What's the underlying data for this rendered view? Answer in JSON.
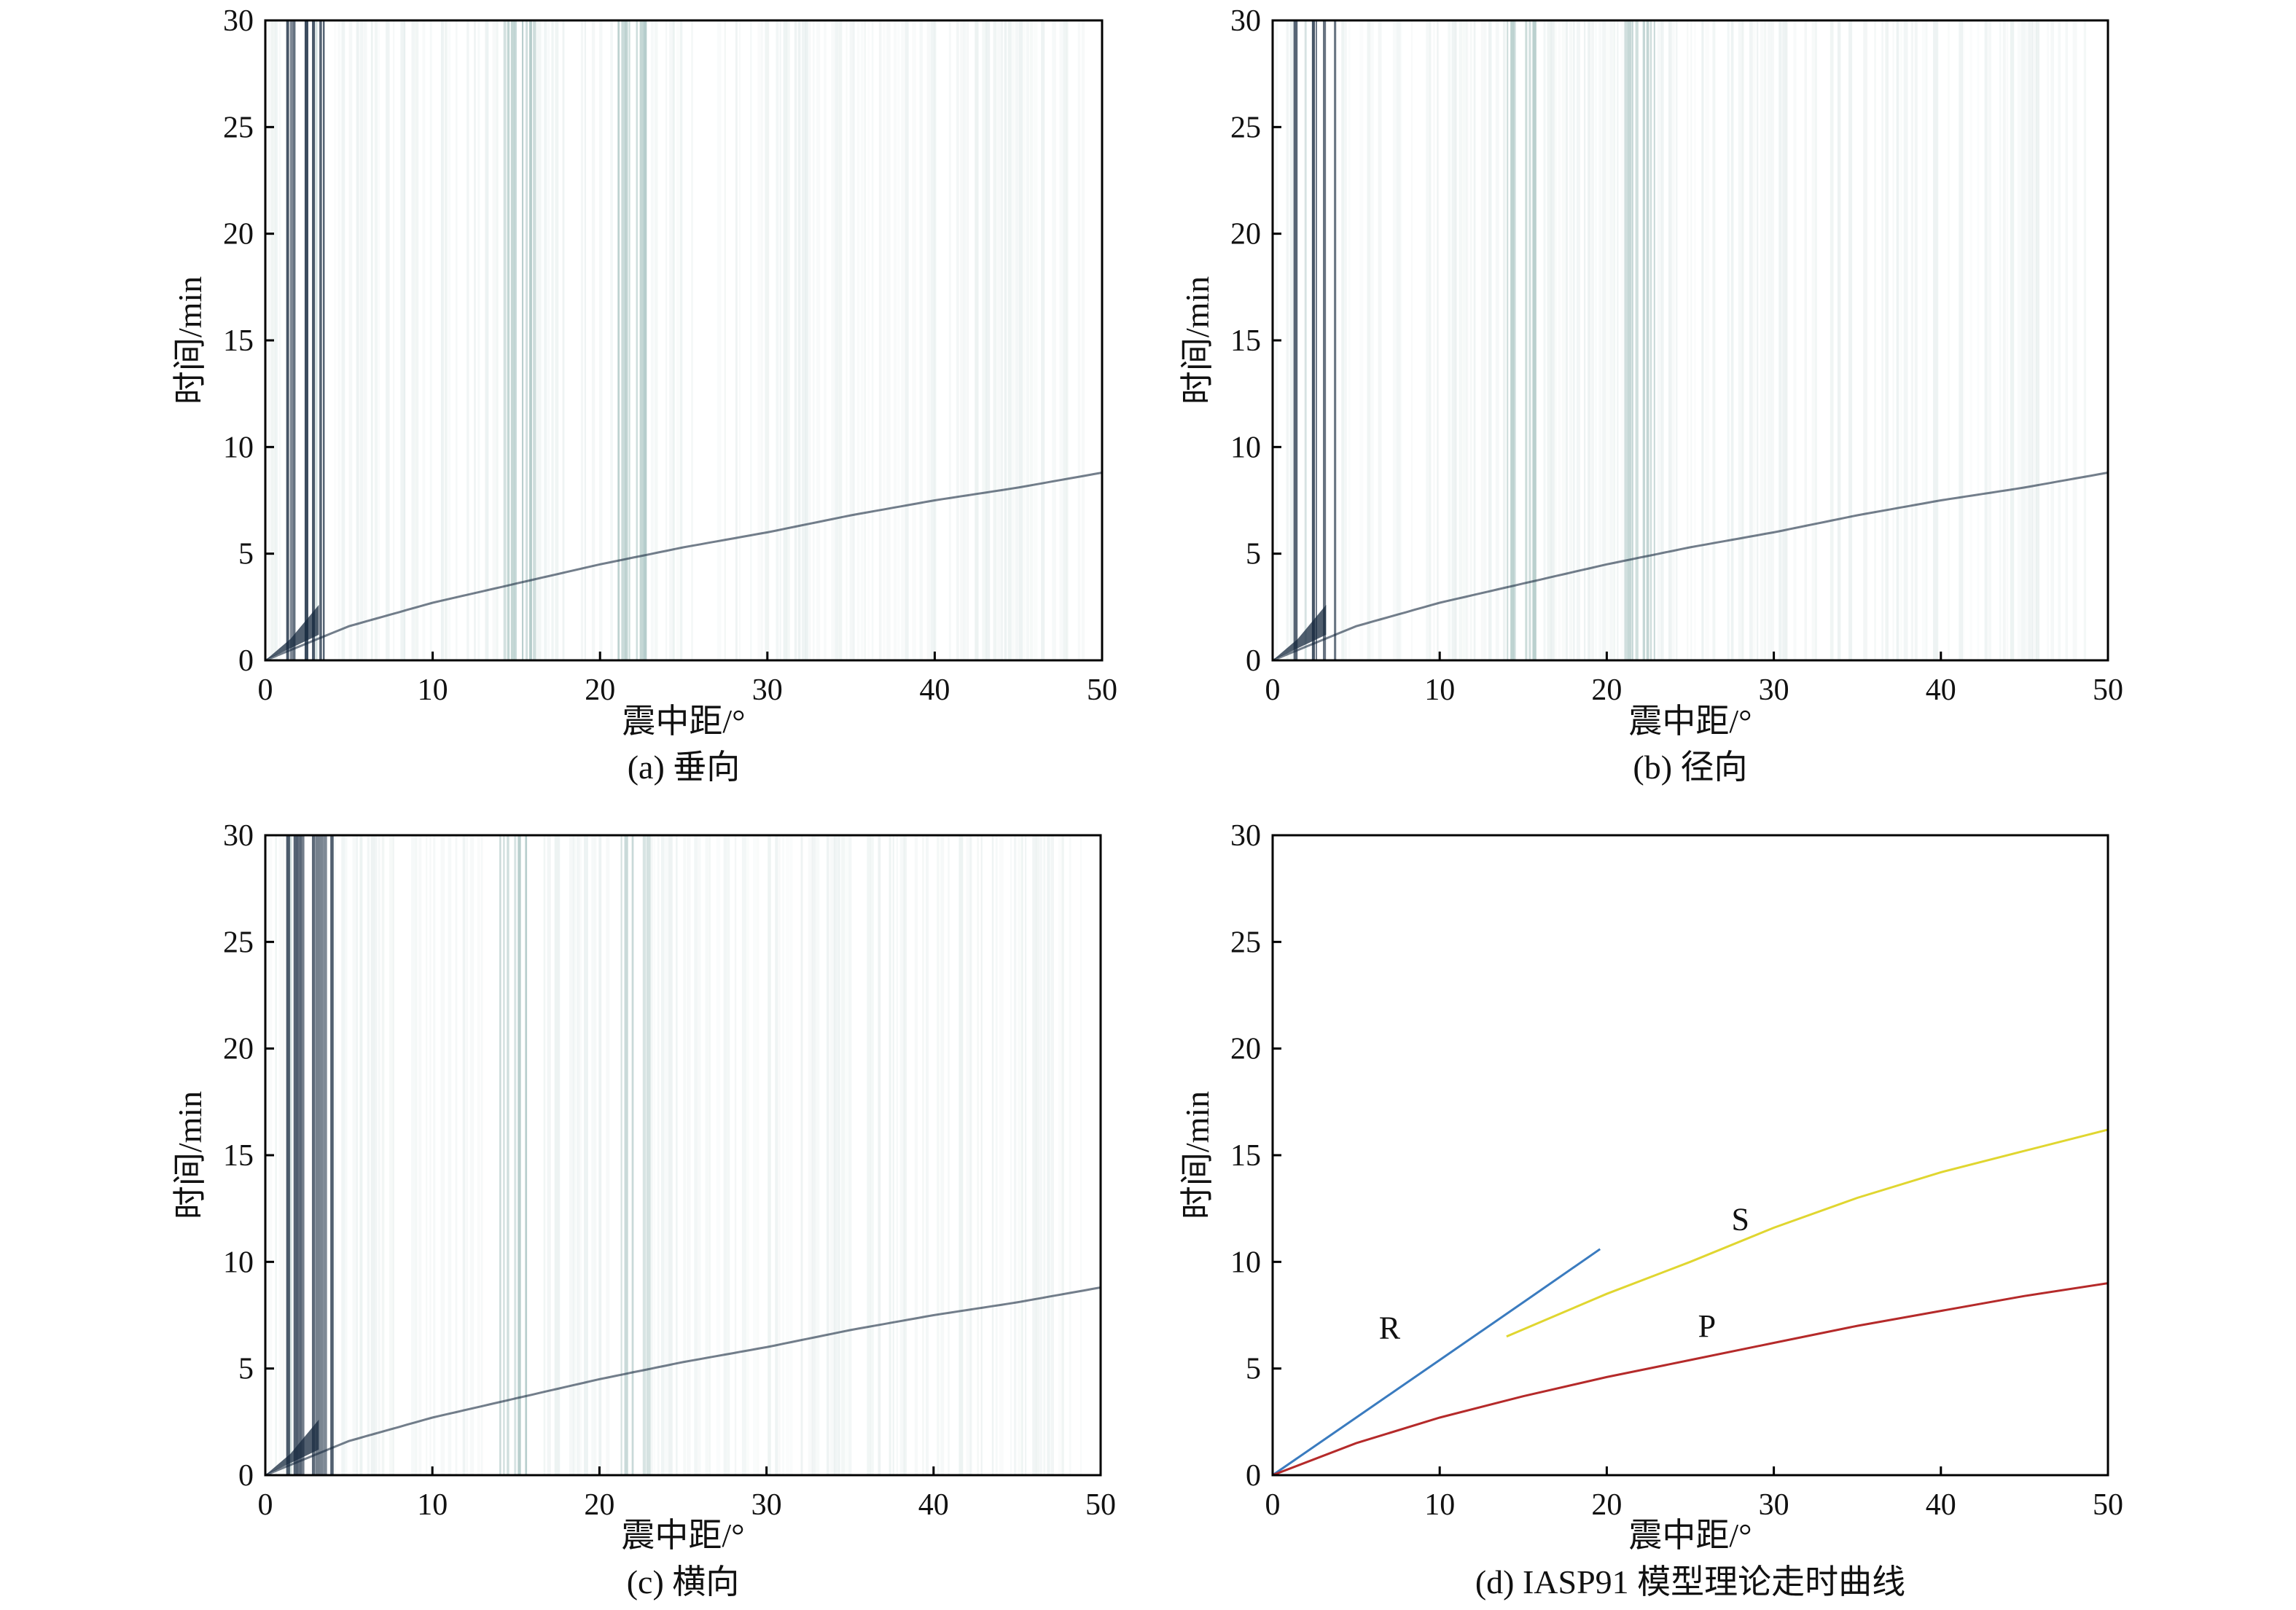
{
  "figure": {
    "colors": {
      "noise": "#a9c4c2",
      "trace_dark": "#15283e",
      "curve_R": "#3a7bbf",
      "curve_S": "#e0d630",
      "curve_P": "#b52a2a",
      "axis": "#000000"
    }
  },
  "chart_data": [
    {
      "type": "heatmap",
      "panel": "a",
      "caption": "(a) 垂向",
      "xlabel": "震中距/°",
      "ylabel": "时间/min",
      "xlim": [
        0,
        50
      ],
      "ylim": [
        0,
        30
      ],
      "xticks": [
        0,
        10,
        20,
        30,
        40,
        50
      ],
      "yticks": [
        0,
        5,
        10,
        15,
        20,
        25,
        30
      ],
      "grid": false,
      "station_band_centers_deg": [
        2.5,
        15,
        22
      ],
      "arrival_front": {
        "x": [
          0,
          5,
          10,
          15,
          20,
          25,
          30,
          35,
          40,
          45,
          50
        ],
        "y": [
          0,
          1.6,
          2.7,
          3.6,
          4.5,
          5.3,
          6.0,
          6.8,
          7.5,
          8.1,
          8.8
        ]
      }
    },
    {
      "type": "heatmap",
      "panel": "b",
      "caption": "(b) 径向",
      "xlabel": "震中距/°",
      "ylabel": "时间/min",
      "xlim": [
        0,
        50
      ],
      "ylim": [
        0,
        30
      ],
      "xticks": [
        0,
        10,
        20,
        30,
        40,
        50
      ],
      "yticks": [
        0,
        5,
        10,
        15,
        20,
        25,
        30
      ],
      "grid": false,
      "station_band_centers_deg": [
        2.5,
        15,
        22
      ],
      "arrival_front": {
        "x": [
          0,
          5,
          10,
          15,
          20,
          25,
          30,
          35,
          40,
          45,
          50
        ],
        "y": [
          0,
          1.6,
          2.7,
          3.6,
          4.5,
          5.3,
          6.0,
          6.8,
          7.5,
          8.1,
          8.8
        ]
      }
    },
    {
      "type": "heatmap",
      "panel": "c",
      "caption": "(c) 横向",
      "xlabel": "震中距/°",
      "ylabel": "时间/min",
      "xlim": [
        0,
        50
      ],
      "ylim": [
        0,
        30
      ],
      "xticks": [
        0,
        10,
        20,
        30,
        40,
        50
      ],
      "yticks": [
        0,
        5,
        10,
        15,
        20,
        25,
        30
      ],
      "grid": false,
      "station_band_centers_deg": [
        2.5,
        15,
        22
      ],
      "arrival_front": {
        "x": [
          0,
          5,
          10,
          15,
          20,
          25,
          30,
          35,
          40,
          45,
          50
        ],
        "y": [
          0,
          1.6,
          2.7,
          3.6,
          4.5,
          5.3,
          6.0,
          6.8,
          7.5,
          8.1,
          8.8
        ]
      }
    },
    {
      "type": "line",
      "panel": "d",
      "caption": "(d) IASP91 模型理论走时曲线",
      "xlabel": "震中距/°",
      "ylabel": "时间/min",
      "xlim": [
        0,
        50
      ],
      "ylim": [
        0,
        30
      ],
      "xticks": [
        0,
        10,
        20,
        30,
        40,
        50
      ],
      "yticks": [
        0,
        5,
        10,
        15,
        20,
        25,
        30
      ],
      "grid": false,
      "series": [
        {
          "name": "R",
          "color": "#3a7bbf",
          "x": [
            0,
            5,
            10,
            15,
            19.6
          ],
          "y": [
            0,
            2.7,
            5.4,
            8.1,
            10.6
          ],
          "label_at": [
            7,
            6.4
          ]
        },
        {
          "name": "S",
          "color": "#e0d630",
          "x": [
            14,
            20,
            25,
            30,
            35,
            40,
            45,
            50
          ],
          "y": [
            6.5,
            8.5,
            10.0,
            11.6,
            13.0,
            14.2,
            15.2,
            16.2
          ],
          "label_at": [
            28,
            11.5
          ]
        },
        {
          "name": "P",
          "color": "#b52a2a",
          "x": [
            0,
            5,
            10,
            15,
            20,
            25,
            30,
            35,
            40,
            45,
            50
          ],
          "y": [
            0,
            1.5,
            2.7,
            3.7,
            4.6,
            5.4,
            6.2,
            7.0,
            7.7,
            8.4,
            9.0
          ],
          "label_at": [
            26,
            6.5
          ]
        }
      ]
    }
  ]
}
